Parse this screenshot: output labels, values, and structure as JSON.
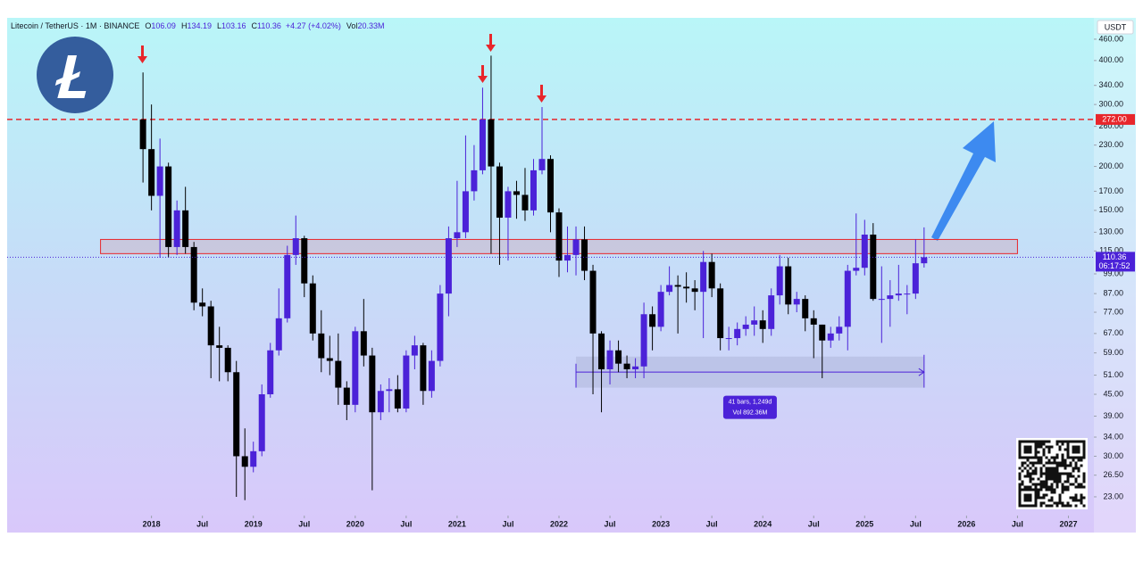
{
  "chart_data": {
    "type": "candlestick",
    "header": {
      "symbol": "Litecoin / TetherUS · 1M · BINANCE",
      "labels": [
        "O",
        "H",
        "L",
        "C"
      ],
      "change": "+4.27 (+4.02%)",
      "vol_label": "Vol",
      "vol": "20.33M"
    },
    "currency": "USDT",
    "countdown": "06:17:52",
    "log_scale": true,
    "up_color": "#4b22d8",
    "down_color": "#000000",
    "x": [
      "2017-12",
      "2018-01",
      "2018-02",
      "2018-03",
      "2018-04",
      "2018-05",
      "2018-06",
      "2018-07",
      "2018-08",
      "2018-09",
      "2018-10",
      "2018-11",
      "2018-12",
      "2019-01",
      "2019-02",
      "2019-03",
      "2019-04",
      "2019-05",
      "2019-06",
      "2019-07",
      "2019-08",
      "2019-09",
      "2019-10",
      "2019-11",
      "2019-12",
      "2020-01",
      "2020-02",
      "2020-03",
      "2020-04",
      "2020-05",
      "2020-06",
      "2020-07",
      "2020-08",
      "2020-09",
      "2020-10",
      "2020-11",
      "2020-12",
      "2021-01",
      "2021-02",
      "2021-03",
      "2021-04",
      "2021-05",
      "2021-06",
      "2021-07",
      "2021-08",
      "2021-09",
      "2021-10",
      "2021-11",
      "2021-12",
      "2022-01",
      "2022-02",
      "2022-03",
      "2022-04",
      "2022-05",
      "2022-06",
      "2022-07",
      "2022-08",
      "2022-09",
      "2022-10",
      "2022-11",
      "2022-12",
      "2023-01",
      "2023-02",
      "2023-03",
      "2023-04",
      "2023-05",
      "2023-06",
      "2023-07",
      "2023-08",
      "2023-09",
      "2023-10",
      "2023-11",
      "2023-12",
      "2024-01",
      "2024-02",
      "2024-03",
      "2024-04",
      "2024-05",
      "2024-06",
      "2024-07",
      "2024-08",
      "2024-09",
      "2024-10",
      "2024-11",
      "2024-12",
      "2025-01",
      "2025-02",
      "2025-03",
      "2025-04",
      "2025-05",
      "2025-06",
      "2025-07",
      "2025-08"
    ],
    "open": [
      272,
      224,
      165,
      200,
      118,
      150,
      118,
      82,
      80,
      62,
      61,
      52,
      30,
      28,
      31,
      45,
      60,
      74,
      112,
      125,
      93,
      67,
      57,
      56,
      47,
      42,
      68,
      58,
      40,
      46,
      46.5,
      41,
      58,
      62,
      46,
      56,
      87,
      125,
      130,
      170,
      195,
      272,
      200,
      143,
      170,
      166,
      150,
      195,
      210,
      148,
      108,
      112,
      124,
      101,
      67,
      53,
      60,
      55,
      53,
      54,
      76,
      70,
      88,
      92,
      91,
      90,
      88,
      107,
      90,
      65,
      65,
      69,
      71,
      73,
      69,
      86,
      104,
      81,
      84,
      74,
      71,
      64,
      67,
      70,
      101,
      103,
      128,
      84,
      84,
      86,
      87,
      87,
      106.09
    ],
    "high": [
      370,
      300,
      240,
      205,
      160,
      175,
      122,
      90,
      83,
      70,
      62,
      56,
      36,
      33,
      48,
      63,
      90,
      119,
      145,
      127,
      98,
      78,
      66,
      67,
      49,
      70,
      84,
      61,
      48,
      50,
      51,
      60,
      66,
      63,
      60,
      92,
      135,
      182,
      245,
      230,
      335,
      413,
      205,
      175,
      182,
      198,
      210,
      295,
      215,
      152,
      135,
      135,
      135,
      105,
      68,
      64,
      64,
      58,
      57,
      82,
      80,
      92,
      104,
      98,
      100,
      95,
      115,
      113,
      93,
      70,
      72,
      75,
      80,
      78,
      90,
      112,
      110,
      88,
      86,
      78,
      71,
      70,
      75,
      105,
      147,
      141,
      138,
      104,
      95,
      105,
      92,
      124,
      134.19
    ],
    "low": [
      180,
      150,
      110,
      110,
      112,
      113,
      78,
      75,
      50,
      49,
      49,
      23,
      22.5,
      27,
      30,
      44,
      58,
      72,
      105,
      85,
      64,
      52,
      51,
      42,
      38,
      40,
      54,
      24,
      38,
      40,
      40,
      40,
      53,
      42,
      44,
      54,
      75,
      118,
      125,
      160,
      190,
      113,
      105,
      108,
      142,
      140,
      145,
      190,
      130,
      97,
      100,
      98,
      95,
      45,
      40,
      48,
      52,
      50,
      50,
      50,
      60,
      68,
      86,
      67,
      82,
      78,
      65,
      85,
      60,
      60,
      62,
      66,
      66,
      63,
      66,
      81,
      76,
      77,
      68,
      57,
      50,
      61,
      64,
      60,
      98,
      98,
      83,
      63,
      70,
      83,
      76,
      84,
      103.16
    ],
    "close": [
      224,
      165,
      200,
      118,
      150,
      118,
      82,
      80,
      62,
      61,
      52,
      30,
      28,
      31,
      45,
      60,
      74,
      112,
      125,
      93,
      67,
      57,
      56,
      47,
      42,
      68,
      58,
      40,
      46,
      46.5,
      41,
      58,
      62,
      46,
      56,
      87,
      125,
      130,
      170,
      195,
      272,
      200,
      143,
      170,
      166,
      150,
      195,
      210,
      148,
      108,
      112,
      124,
      101,
      67,
      53,
      60,
      55,
      53,
      54,
      76,
      70,
      88,
      92,
      91,
      90,
      88,
      107,
      90,
      65,
      65,
      69,
      71,
      73,
      69,
      86,
      104,
      81,
      84,
      74,
      71,
      64,
      67,
      70,
      101,
      103,
      128,
      84,
      84,
      86,
      87,
      87,
      106.09,
      110.36
    ],
    "xlim": [
      "2016-08",
      "2027-04"
    ],
    "xticks": [
      {
        "value": "2018-01",
        "label": "2018"
      },
      {
        "value": "2018-07",
        "label": "Jul"
      },
      {
        "value": "2019-01",
        "label": "2019"
      },
      {
        "value": "2019-07",
        "label": "Jul"
      },
      {
        "value": "2020-01",
        "label": "2020"
      },
      {
        "value": "2020-07",
        "label": "Jul"
      },
      {
        "value": "2021-01",
        "label": "2021"
      },
      {
        "value": "2021-07",
        "label": "Jul"
      },
      {
        "value": "2022-01",
        "label": "2022"
      },
      {
        "value": "2022-07",
        "label": "Jul"
      },
      {
        "value": "2023-01",
        "label": "2023"
      },
      {
        "value": "2023-07",
        "label": "Jul"
      },
      {
        "value": "2024-01",
        "label": "2024"
      },
      {
        "value": "2024-07",
        "label": "Jul"
      },
      {
        "value": "2025-01",
        "label": "2025"
      },
      {
        "value": "2025-07",
        "label": "Jul"
      },
      {
        "value": "2026-01",
        "label": "2026"
      },
      {
        "value": "2026-07",
        "label": "Jul"
      },
      {
        "value": "2027-01",
        "label": "2027"
      }
    ],
    "ylim": [
      20.7,
      529
    ],
    "yticks": [
      {
        "value": 460,
        "label": "460.00"
      },
      {
        "value": 400,
        "label": "400.00"
      },
      {
        "value": 340,
        "label": "340.00"
      },
      {
        "value": 300,
        "label": "300.00"
      },
      {
        "value": 260,
        "label": "260.00"
      },
      {
        "value": 230,
        "label": "230.00"
      },
      {
        "value": 200,
        "label": "200.00"
      },
      {
        "value": 170,
        "label": "170.00"
      },
      {
        "value": 150,
        "label": "150.00"
      },
      {
        "value": 130,
        "label": "130.00"
      },
      {
        "value": 115,
        "label": "115.00"
      },
      {
        "value": 99,
        "label": "99.00"
      },
      {
        "value": 87,
        "label": "87.00"
      },
      {
        "value": 77,
        "label": "77.00"
      },
      {
        "value": 67,
        "label": "67.00"
      },
      {
        "value": 59,
        "label": "59.00"
      },
      {
        "value": 51,
        "label": "51.00"
      },
      {
        "value": 45,
        "label": "45.00"
      },
      {
        "value": 39,
        "label": "39.00"
      },
      {
        "value": 34,
        "label": "34.00"
      },
      {
        "value": 30,
        "label": "30.00"
      },
      {
        "value": 26.5,
        "label": "26.50"
      },
      {
        "value": 23,
        "label": "23.00"
      }
    ],
    "level": {
      "value": 272,
      "label": "272.00",
      "color": "#e8262b"
    },
    "zone": {
      "x": [
        "2017-07",
        "2026-07"
      ],
      "y": [
        113,
        124
      ],
      "color": "#e8262b"
    },
    "measure": {
      "x": [
        "2022-03",
        "2025-08"
      ],
      "y": [
        47,
        57.6
      ],
      "bars_text": "41 bars, 1,249d",
      "vol_text": "Vol 892.36M",
      "color": "#4b22d8"
    }
  }
}
